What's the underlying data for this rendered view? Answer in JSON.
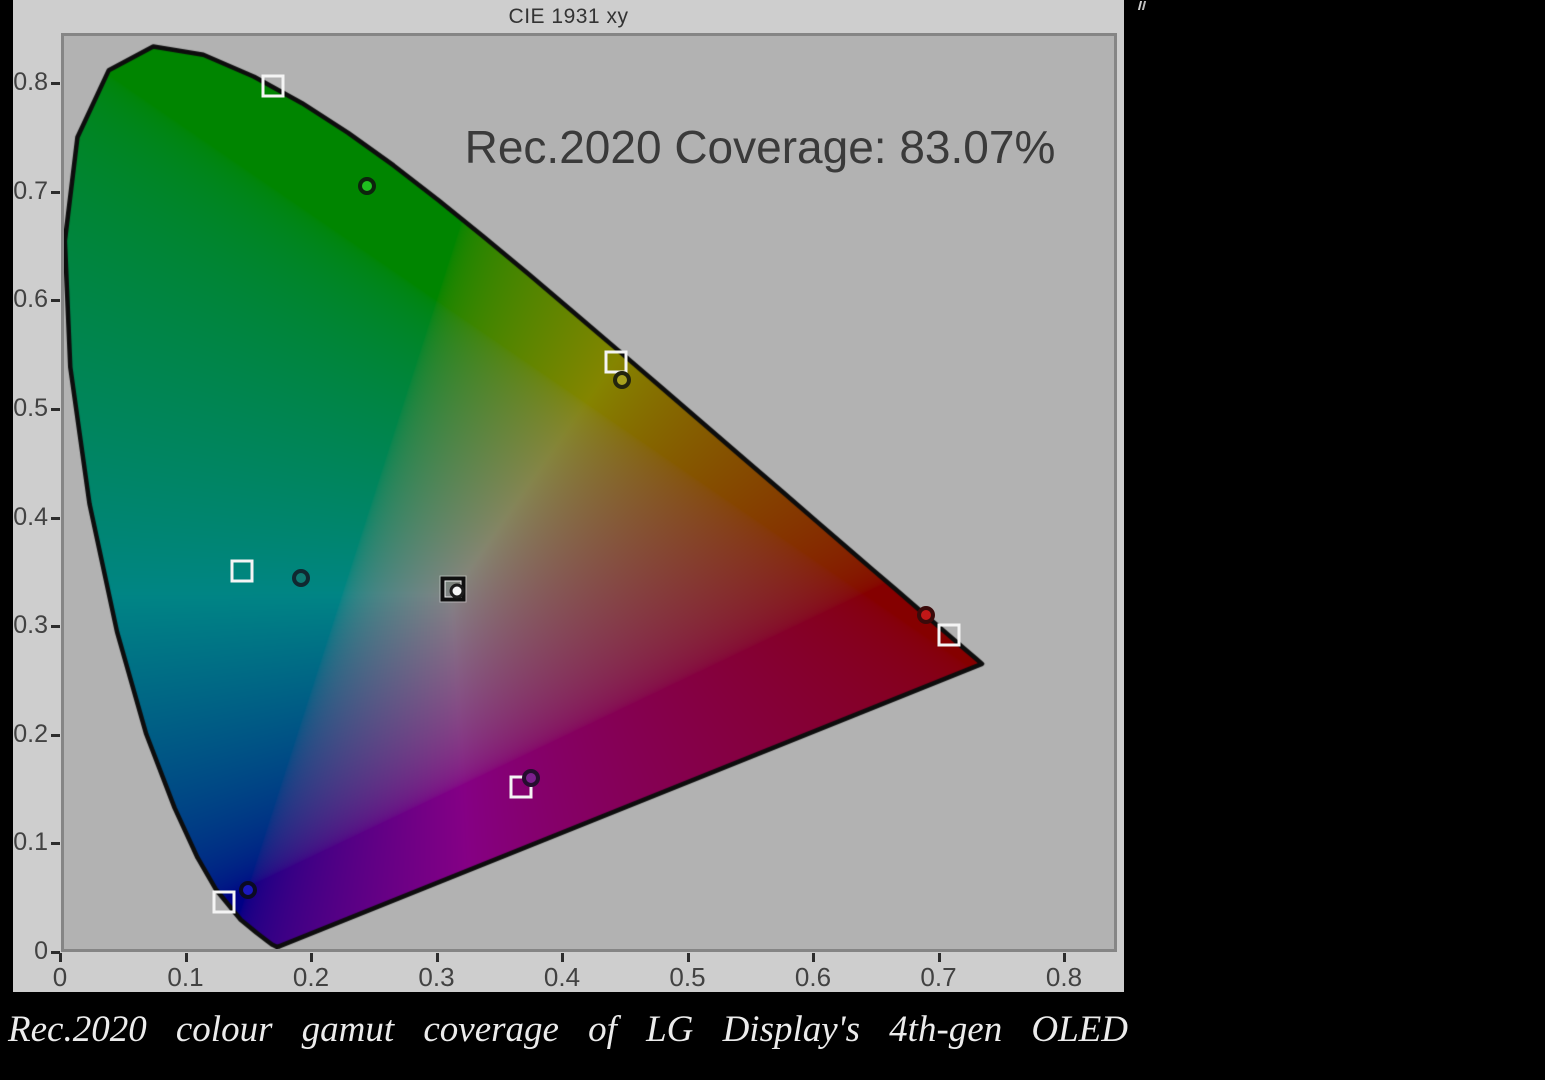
{
  "chart": {
    "title": "CIE 1931 xy",
    "coverage_label": "Rec.2020 Coverage: 83.07%",
    "caption": "Rec.2020 colour gamut coverage of LG Display's 4th-gen OLED"
  },
  "colors": {
    "page_bg": "#000000",
    "chart_bg": "#cecece",
    "plot_bg": "#b2b2b2",
    "plot_border": "#858585",
    "title_color": "#333333",
    "tick_label_color": "#424242",
    "coverage_text_color": "#3a3a3a",
    "caption_color": "#ececec",
    "locus_outline": "#0d0d0d",
    "target_square": "#f4f4f4",
    "white_target_square": "#101010"
  },
  "chart_data": {
    "type": "scatter",
    "title": "CIE 1931 xy",
    "annotation": "Rec.2020 Coverage: 83.07%",
    "coverage_percent": 83.07,
    "xlim": [
      0,
      0.85
    ],
    "ylim": [
      0,
      0.85
    ],
    "grid": false,
    "x_ticks": [
      {
        "v": 0.0,
        "label": "0"
      },
      {
        "v": 0.1,
        "label": "0.1"
      },
      {
        "v": 0.2,
        "label": "0.2"
      },
      {
        "v": 0.3,
        "label": "0.3"
      },
      {
        "v": 0.4,
        "label": "0.4"
      },
      {
        "v": 0.5,
        "label": "0.5"
      },
      {
        "v": 0.6,
        "label": "0.6"
      },
      {
        "v": 0.7,
        "label": "0.7"
      },
      {
        "v": 0.8,
        "label": "0.8"
      }
    ],
    "y_ticks": [
      {
        "v": 0.0,
        "label": "0"
      },
      {
        "v": 0.1,
        "label": "0.1"
      },
      {
        "v": 0.2,
        "label": "0.2"
      },
      {
        "v": 0.3,
        "label": "0.3"
      },
      {
        "v": 0.4,
        "label": "0.4"
      },
      {
        "v": 0.5,
        "label": "0.5"
      },
      {
        "v": 0.6,
        "label": "0.6"
      },
      {
        "v": 0.7,
        "label": "0.7"
      },
      {
        "v": 0.8,
        "label": "0.8"
      }
    ],
    "reference_gamut": {
      "name": "Rec.2020",
      "red": [
        0.708,
        0.292
      ],
      "green": [
        0.17,
        0.797
      ],
      "blue": [
        0.131,
        0.046
      ]
    },
    "targets": [
      {
        "name": "green",
        "x": 0.17,
        "y": 0.797,
        "style": "white-square"
      },
      {
        "name": "yellow",
        "x": 0.443,
        "y": 0.543,
        "style": "white-square"
      },
      {
        "name": "red",
        "x": 0.708,
        "y": 0.292,
        "style": "white-square"
      },
      {
        "name": "magenta",
        "x": 0.367,
        "y": 0.152,
        "style": "white-square"
      },
      {
        "name": "blue",
        "x": 0.131,
        "y": 0.046,
        "style": "white-square"
      },
      {
        "name": "cyan",
        "x": 0.145,
        "y": 0.351,
        "style": "white-square"
      },
      {
        "name": "white",
        "x": 0.313,
        "y": 0.334,
        "style": "black-square"
      }
    ],
    "measurements": [
      {
        "name": "green",
        "x": 0.245,
        "y": 0.705,
        "fill": "#1fbf1f",
        "ring": "#0d230d"
      },
      {
        "name": "yellow",
        "x": 0.448,
        "y": 0.527,
        "fill": "#a8a21e",
        "ring": "#23250e"
      },
      {
        "name": "cyan",
        "x": 0.192,
        "y": 0.344,
        "fill": "#0f7a72",
        "ring": "#102830"
      },
      {
        "name": "white",
        "x": 0.316,
        "y": 0.332,
        "fill": "#f4f4f4",
        "ring": "#1c1c1c"
      },
      {
        "name": "red",
        "x": 0.69,
        "y": 0.31,
        "fill": "#c21717",
        "ring": "#3a0a0a"
      },
      {
        "name": "magenta",
        "x": 0.375,
        "y": 0.16,
        "fill": "#7c1f8e",
        "ring": "#250d2e"
      },
      {
        "name": "blue",
        "x": 0.15,
        "y": 0.057,
        "fill": "#1a18c0",
        "ring": "#0b0b24"
      }
    ]
  }
}
